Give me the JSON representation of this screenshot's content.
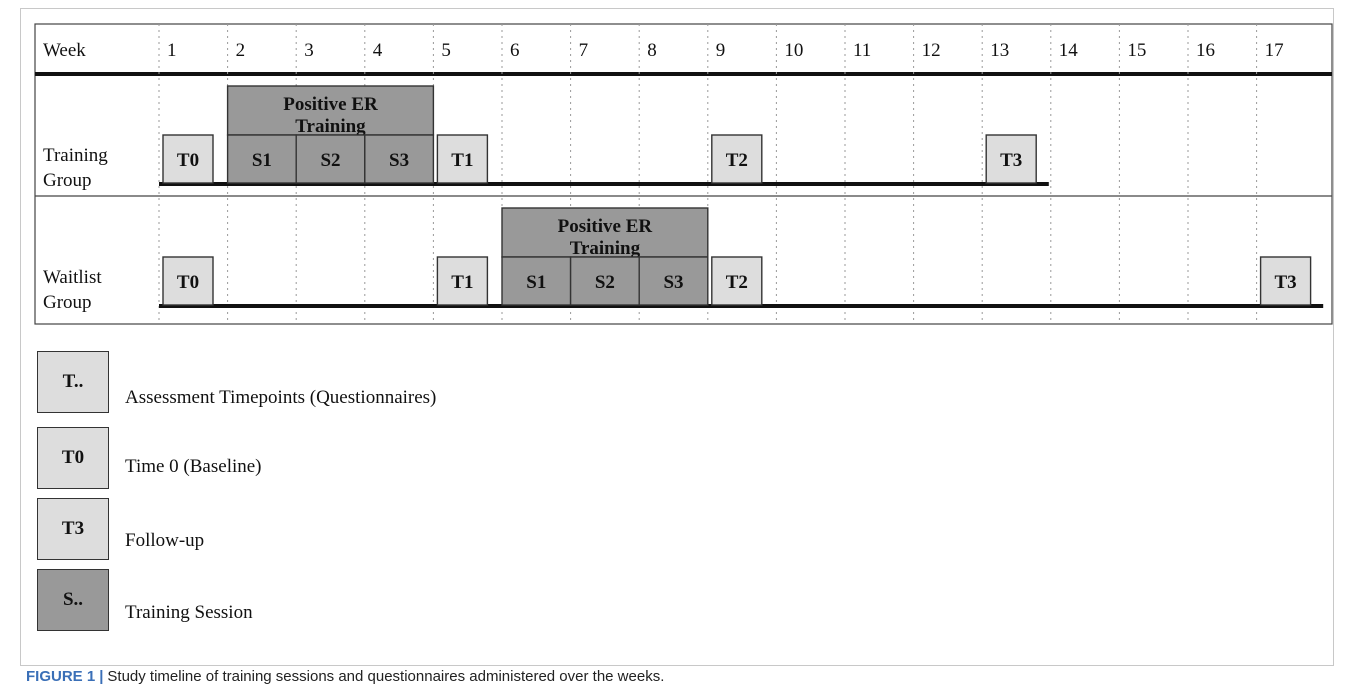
{
  "colors": {
    "assessment_fill": "#dddddd",
    "session_fill": "#999999",
    "line": "#111111",
    "caption_accent": "#3a6fb7"
  },
  "timeline": {
    "header_label": "Week",
    "weeks": [
      "1",
      "2",
      "3",
      "4",
      "5",
      "6",
      "7",
      "8",
      "9",
      "10",
      "11",
      "12",
      "13",
      "14",
      "15",
      "16",
      "17"
    ],
    "groups": [
      {
        "label": "Training\nGroup",
        "assessments": [
          {
            "label": "T0",
            "week": 1
          },
          {
            "label": "T1",
            "week": 5
          },
          {
            "label": "T2",
            "week": 9
          },
          {
            "label": "T3",
            "week": 13
          }
        ],
        "training": {
          "title": "Positive ER Training",
          "start_week": 2,
          "sessions": [
            "S1",
            "S2",
            "S3"
          ]
        },
        "line_end_week": 14
      },
      {
        "label": "Waitlist\nGroup",
        "assessments": [
          {
            "label": "T0",
            "week": 1
          },
          {
            "label": "T1",
            "week": 5
          },
          {
            "label": "T2",
            "week": 9
          },
          {
            "label": "T3",
            "week": 17
          }
        ],
        "training": {
          "title": "Positive ER Training",
          "start_week": 6,
          "sessions": [
            "S1",
            "S2",
            "S3"
          ]
        },
        "line_end_week": 18
      }
    ]
  },
  "legend": [
    {
      "box_label": "T..",
      "text": "Assessment Timepoints (Questionnaires)",
      "kind": "assessment"
    },
    {
      "box_label": "T0",
      "text": "Time 0 (Baseline)",
      "kind": "assessment"
    },
    {
      "box_label": "T3",
      "text": "Follow-up",
      "kind": "assessment"
    },
    {
      "box_label": "S..",
      "text": "Training Session",
      "kind": "session"
    }
  ],
  "caption": {
    "label": "FIGURE 1",
    "separator": "|",
    "text": "Study timeline of training sessions and questionnaires administered over the weeks."
  }
}
